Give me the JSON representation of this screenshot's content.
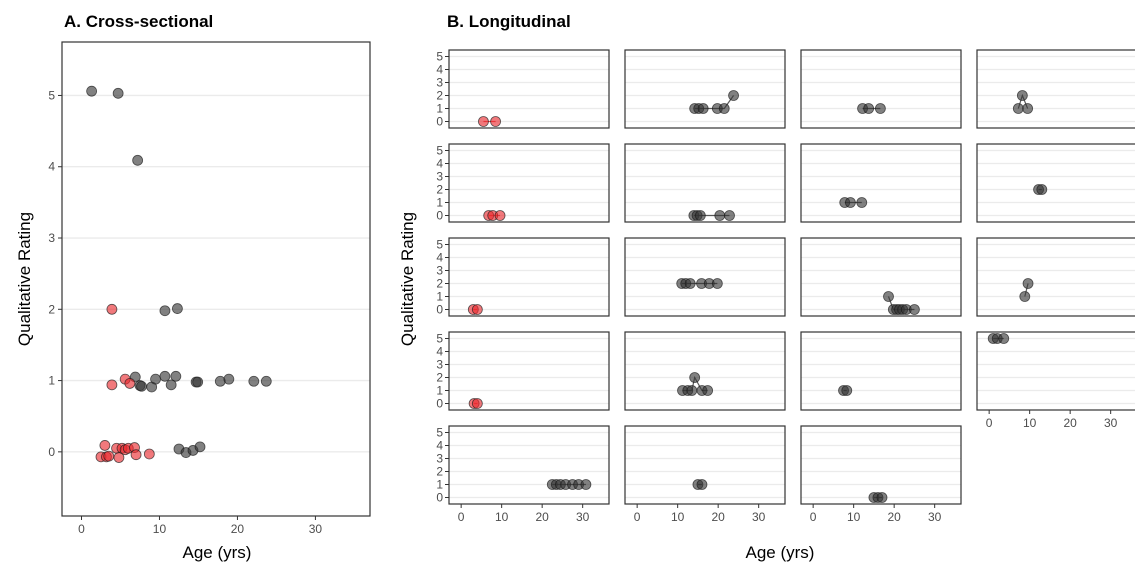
{
  "chart_data": [
    {
      "type": "scatter",
      "title": "A. Cross-sectional",
      "xlabel": "Age (yrs)",
      "ylabel": "Qualitative Rating",
      "xlim": [
        -2.5,
        37
      ],
      "ylim": [
        -0.9,
        5.75
      ],
      "xticks": [
        "0",
        "10",
        "20",
        "30"
      ],
      "yticks": [
        "0",
        "1",
        "2",
        "3",
        "4",
        "5"
      ],
      "grid": "horizontal",
      "colors": {
        "gray": "#333333",
        "red": "#e8262b"
      },
      "series": [
        {
          "color": "gray",
          "points": [
            [
              1.3,
              5.06
            ],
            [
              4.7,
              5.03
            ],
            [
              7.2,
              4.09
            ],
            [
              10.7,
              1.98
            ],
            [
              12.3,
              2.01
            ],
            [
              6.9,
              1.05
            ],
            [
              7.5,
              0.93
            ],
            [
              7.7,
              0.92
            ],
            [
              9.0,
              0.91
            ],
            [
              9.5,
              1.02
            ],
            [
              10.7,
              1.06
            ],
            [
              11.5,
              0.94
            ],
            [
              12.1,
              1.06
            ],
            [
              14.7,
              0.98
            ],
            [
              14.9,
              0.98
            ],
            [
              17.8,
              0.99
            ],
            [
              18.9,
              1.02
            ],
            [
              22.1,
              0.99
            ],
            [
              23.7,
              0.99
            ],
            [
              12.5,
              0.04
            ],
            [
              13.4,
              -0.01
            ],
            [
              14.3,
              0.02
            ],
            [
              15.2,
              0.07
            ]
          ]
        },
        {
          "color": "red",
          "points": [
            [
              3.9,
              2.0
            ],
            [
              3.9,
              0.94
            ],
            [
              5.6,
              1.02
            ],
            [
              6.2,
              0.96
            ],
            [
              3.0,
              0.09
            ],
            [
              2.5,
              -0.07
            ],
            [
              3.2,
              -0.07
            ],
            [
              3.5,
              -0.06
            ],
            [
              4.5,
              0.05
            ],
            [
              4.8,
              -0.08
            ],
            [
              5.2,
              0.05
            ],
            [
              5.6,
              0.03
            ],
            [
              6.0,
              0.05
            ],
            [
              6.8,
              0.06
            ],
            [
              7.0,
              -0.04
            ],
            [
              8.7,
              -0.03
            ]
          ]
        }
      ]
    },
    {
      "type": "scatter",
      "title": "B. Longitudinal",
      "xlabel": "Age (yrs)",
      "ylabel": "Qualitative Rating",
      "xlim": [
        -3,
        36.5
      ],
      "ylim": [
        -0.5,
        5.5
      ],
      "xticks": [
        "0",
        "10",
        "20",
        "30"
      ],
      "yticks": [
        "0",
        "1",
        "2",
        "3",
        "4",
        "5"
      ],
      "grid": "horizontal",
      "layout": "5 rows x 4 columns, 19 panels",
      "colors": {
        "gray": "#333333",
        "red": "#e8262b"
      },
      "panels": [
        {
          "color": "red",
          "points": [
            [
              5.5,
              0
            ],
            [
              8.5,
              0
            ]
          ]
        },
        {
          "color": "gray",
          "points": [
            [
              14.2,
              1
            ],
            [
              15.2,
              1
            ],
            [
              16.3,
              1
            ],
            [
              19.8,
              1
            ],
            [
              21.5,
              1
            ],
            [
              23.8,
              2
            ]
          ]
        },
        {
          "color": "gray",
          "points": [
            [
              12.2,
              1
            ],
            [
              13.7,
              1
            ],
            [
              16.6,
              1
            ]
          ]
        },
        {
          "color": "gray",
          "points": [
            [
              7.2,
              1
            ],
            [
              8.2,
              2
            ],
            [
              9.5,
              1
            ]
          ]
        },
        {
          "color": "red",
          "points": [
            [
              6.8,
              0
            ],
            [
              7.8,
              0
            ],
            [
              9.6,
              0
            ]
          ]
        },
        {
          "color": "gray",
          "points": [
            [
              14.0,
              0
            ],
            [
              14.8,
              0
            ],
            [
              15.6,
              0
            ],
            [
              20.4,
              0
            ],
            [
              22.8,
              0
            ]
          ]
        },
        {
          "color": "gray",
          "points": [
            [
              7.8,
              1
            ],
            [
              9.2,
              1
            ],
            [
              12.0,
              1
            ]
          ]
        },
        {
          "color": "gray",
          "points": [
            [
              12.2,
              2
            ],
            [
              13.0,
              2
            ]
          ]
        },
        {
          "color": "red",
          "points": [
            [
              3.0,
              0
            ],
            [
              4.0,
              0
            ]
          ]
        },
        {
          "color": "gray",
          "points": [
            [
              11.0,
              2
            ],
            [
              12.0,
              2
            ],
            [
              13.1,
              2
            ],
            [
              15.9,
              2
            ],
            [
              17.8,
              2
            ],
            [
              19.8,
              2
            ]
          ]
        },
        {
          "color": "gray",
          "points": [
            [
              18.6,
              1
            ],
            [
              19.8,
              0
            ],
            [
              20.6,
              0
            ],
            [
              21.3,
              0
            ],
            [
              22.1,
              0
            ],
            [
              23.0,
              0
            ],
            [
              25.0,
              0
            ]
          ]
        },
        {
          "color": "gray",
          "points": [
            [
              8.8,
              1
            ],
            [
              9.6,
              2
            ]
          ]
        },
        {
          "color": "red",
          "points": [
            [
              3.2,
              0
            ],
            [
              4.0,
              0
            ]
          ]
        },
        {
          "color": "gray",
          "points": [
            [
              11.2,
              1
            ],
            [
              12.5,
              1
            ],
            [
              13.5,
              1
            ],
            [
              14.2,
              2
            ],
            [
              16.0,
              1
            ],
            [
              17.4,
              1
            ]
          ]
        },
        {
          "color": "gray",
          "points": [
            [
              7.5,
              1
            ],
            [
              8.3,
              1
            ]
          ]
        },
        {
          "color": "gray",
          "points": [
            [
              1.0,
              5
            ],
            [
              2.0,
              5
            ],
            [
              3.6,
              5
            ]
          ]
        },
        {
          "color": "gray",
          "points": [
            [
              22.5,
              1
            ],
            [
              23.5,
              1
            ],
            [
              24.5,
              1
            ],
            [
              25.8,
              1
            ],
            [
              27.5,
              1
            ],
            [
              29.0,
              1
            ],
            [
              30.8,
              1
            ]
          ]
        },
        {
          "color": "gray",
          "points": [
            [
              15.0,
              1
            ],
            [
              16.0,
              1
            ]
          ]
        },
        {
          "color": "gray",
          "points": [
            [
              15.0,
              0
            ],
            [
              16.0,
              0
            ],
            [
              17.0,
              0
            ]
          ]
        }
      ]
    }
  ]
}
